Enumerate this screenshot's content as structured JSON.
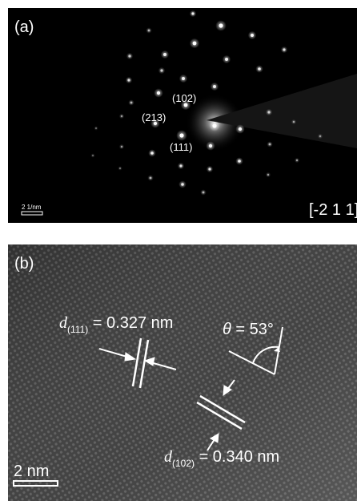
{
  "panel_a": {
    "label": "(a)",
    "spot_labels": {
      "s102": "(102)",
      "s213": "(213)",
      "s111": "(111)"
    },
    "scale_bar_label": "2 1/nm",
    "zone_axis": "[-2 1 1]"
  },
  "panel_b": {
    "label": "(b)",
    "d111": {
      "symbol": "d",
      "subscript": "(111)",
      "value": " = 0.327 nm"
    },
    "d102": {
      "symbol": "d",
      "subscript": "(102)",
      "value": " = 0.340 nm"
    },
    "angle": {
      "symbol": "θ",
      "value": " = 53°"
    },
    "scale_bar_label": "2 nm"
  }
}
